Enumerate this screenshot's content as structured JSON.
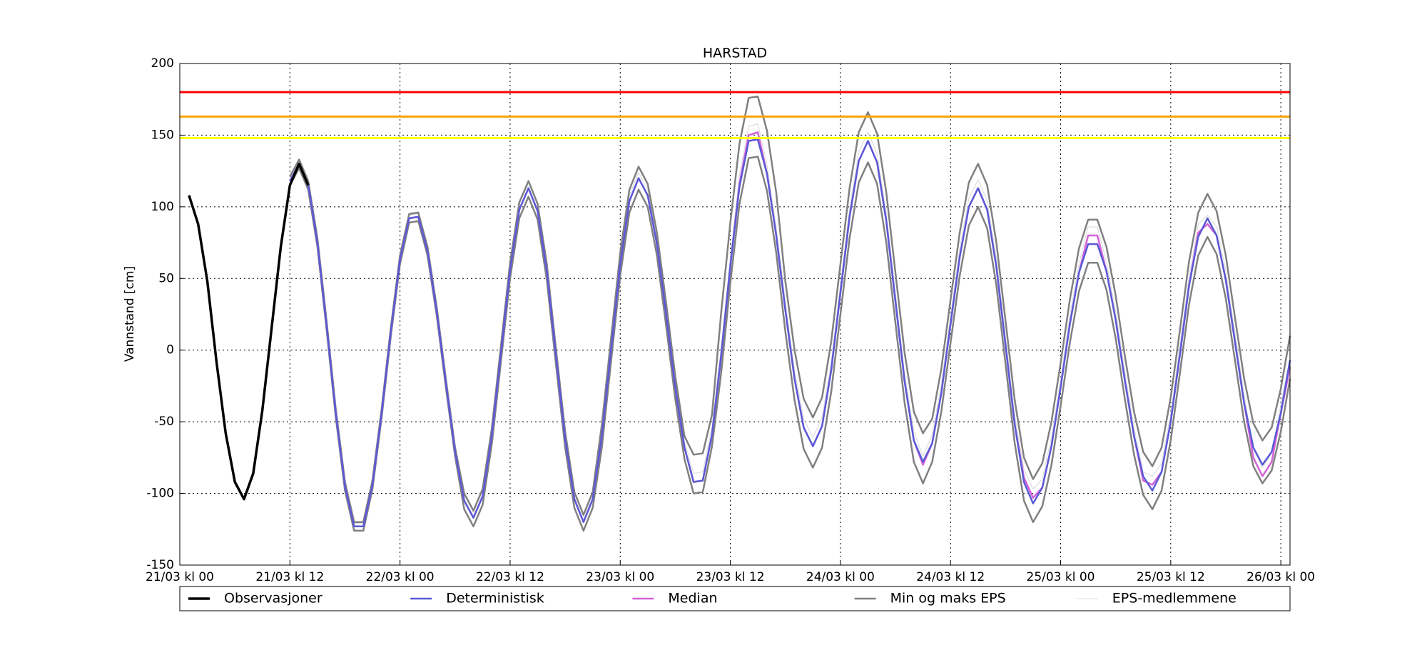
{
  "chart_data": {
    "type": "line",
    "title": "HARSTAD",
    "y_label": "Vannstand [cm]",
    "xlim": [
      0,
      121
    ],
    "ylim": [
      -150,
      200
    ],
    "grid": true,
    "legend": "bottom",
    "xticks": [
      {
        "value": 0,
        "label": "21/03 kl 00"
      },
      {
        "value": 12,
        "label": "21/03 kl 12"
      },
      {
        "value": 24,
        "label": "22/03 kl 00"
      },
      {
        "value": 36,
        "label": "22/03 kl 12"
      },
      {
        "value": 48,
        "label": "23/03 kl 00"
      },
      {
        "value": 60,
        "label": "23/03 kl 12"
      },
      {
        "value": 72,
        "label": "24/03 kl 00"
      },
      {
        "value": 84,
        "label": "24/03 kl 12"
      },
      {
        "value": 96,
        "label": "25/03 kl 00"
      },
      {
        "value": 108,
        "label": "25/03 kl 12"
      },
      {
        "value": 120,
        "label": "26/03 kl 00"
      }
    ],
    "yticks": [
      -150,
      -100,
      -50,
      0,
      50,
      100,
      150,
      200
    ],
    "thresholds": [
      {
        "value": 180,
        "color": "#ff0000"
      },
      {
        "value": 163,
        "color": "#ffa500"
      },
      {
        "value": 148,
        "color": "#ffff00"
      }
    ],
    "x": [
      12,
      13,
      14,
      15,
      16,
      17,
      18,
      19,
      20,
      21,
      22,
      23,
      24,
      25,
      26,
      27,
      28,
      29,
      30,
      31,
      32,
      33,
      34,
      35,
      36,
      37,
      38,
      39,
      40,
      41,
      42,
      43,
      44,
      45,
      46,
      47,
      48,
      49,
      50,
      51,
      52,
      53,
      54,
      55,
      56,
      57,
      58,
      59,
      60,
      61,
      62,
      63,
      64,
      65,
      66,
      67,
      68,
      69,
      70,
      71,
      72,
      73,
      74,
      75,
      76,
      77,
      78,
      79,
      80,
      81,
      82,
      83,
      84,
      85,
      86,
      87,
      88,
      89,
      90,
      91,
      92,
      93,
      94,
      95,
      96,
      97,
      98,
      99,
      100,
      101,
      102,
      103,
      104,
      105,
      106,
      107,
      108,
      109,
      110,
      111,
      112,
      113,
      114,
      115,
      116,
      117,
      118,
      119,
      120,
      121
    ],
    "series": [
      {
        "name": "Observasjoner",
        "color": "#000000",
        "width": 3.5,
        "x": [
          1,
          2,
          3,
          4,
          5,
          6,
          7,
          8,
          9,
          10,
          11,
          12,
          13,
          14
        ],
        "values": [
          108,
          88,
          48,
          -8,
          -58,
          -92,
          -104,
          -86,
          -42,
          15,
          72,
          115,
          130,
          115
        ]
      },
      {
        "name": "Deterministisk",
        "color": "#5a5ad6",
        "width": 2.5,
        "values": [
          118,
          130,
          115,
          75,
          17,
          -44,
          -95,
          -123,
          -123,
          -94,
          -44,
          13,
          63,
          92,
          93,
          69,
          27,
          -23,
          -71,
          -105,
          -117,
          -102,
          -60,
          -2,
          56,
          98,
          113,
          97,
          55,
          -4,
          -62,
          -104,
          -120,
          -104,
          -60,
          0,
          60,
          104,
          120,
          108,
          74,
          25,
          -26,
          -68,
          -92,
          -91,
          -59,
          -4,
          59,
          114,
          146,
          147,
          123,
          80,
          28,
          -20,
          -54,
          -67,
          -53,
          -14,
          40,
          93,
          132,
          146,
          131,
          90,
          34,
          -22,
          -63,
          -78,
          -65,
          -30,
          18,
          65,
          100,
          113,
          98,
          58,
          3,
          -52,
          -92,
          -107,
          -96,
          -67,
          -26,
          18,
          54,
          74,
          74,
          55,
          21,
          -21,
          -60,
          -88,
          -98,
          -85,
          -50,
          -3,
          45,
          79,
          92,
          80,
          49,
          6,
          -37,
          -68,
          -80,
          -71,
          -44,
          -7
        ]
      },
      {
        "name": "Median",
        "color": "#d462d8",
        "width": 2.5,
        "values": [
          118,
          130,
          115,
          75,
          17,
          -44,
          -95,
          -123,
          -123,
          -94,
          -44,
          13,
          63,
          92,
          93,
          69,
          27,
          -23,
          -71,
          -105,
          -117,
          -102,
          -60,
          -2,
          56,
          98,
          113,
          97,
          55,
          -4,
          -62,
          -104,
          -120,
          -104,
          -60,
          0,
          60,
          104,
          120,
          108,
          74,
          25,
          -26,
          -68,
          -92,
          -91,
          -59,
          -4,
          59,
          116,
          150,
          152,
          123,
          80,
          28,
          -20,
          -54,
          -67,
          -53,
          -14,
          40,
          93,
          132,
          146,
          131,
          90,
          34,
          -22,
          -63,
          -80,
          -65,
          -30,
          18,
          65,
          100,
          113,
          98,
          58,
          3,
          -52,
          -89,
          -103,
          -96,
          -67,
          -26,
          18,
          54,
          80,
          80,
          55,
          21,
          -21,
          -60,
          -91,
          -94,
          -85,
          -50,
          -3,
          45,
          82,
          88,
          80,
          49,
          6,
          -37,
          -75,
          -88,
          -78,
          -44,
          -12
        ]
      },
      {
        "name": "Min og maks EPS",
        "color": "#808080",
        "width": 2.5,
        "min": [
          115,
          127,
          112,
          72,
          14,
          -47,
          -98,
          -126,
          -126,
          -97,
          -47,
          10,
          60,
          89,
          90,
          66,
          24,
          -26,
          -74,
          -111,
          -123,
          -108,
          -66,
          -8,
          50,
          92,
          107,
          91,
          49,
          -10,
          -68,
          -110,
          -126,
          -110,
          -68,
          -8,
          52,
          96,
          112,
          100,
          66,
          17,
          -34,
          -76,
          -100,
          -99,
          -67,
          -16,
          47,
          102,
          134,
          135,
          111,
          68,
          13,
          -35,
          -69,
          -82,
          -68,
          -29,
          25,
          78,
          117,
          131,
          116,
          75,
          19,
          -37,
          -78,
          -93,
          -78,
          -43,
          5,
          52,
          87,
          100,
          85,
          45,
          -10,
          -65,
          -105,
          -120,
          -109,
          -80,
          -39,
          5,
          41,
          61,
          61,
          42,
          8,
          -34,
          -73,
          -101,
          -111,
          -98,
          -63,
          -16,
          32,
          66,
          79,
          67,
          36,
          -7,
          -50,
          -81,
          -93,
          -84,
          -57,
          -20
        ],
        "max": [
          121,
          133,
          118,
          78,
          20,
          -41,
          -92,
          -120,
          -120,
          -91,
          -41,
          16,
          66,
          95,
          96,
          72,
          30,
          -20,
          -68,
          -100,
          -112,
          -97,
          -55,
          3,
          61,
          103,
          118,
          102,
          60,
          1,
          -57,
          -99,
          -115,
          -99,
          -52,
          8,
          68,
          112,
          128,
          116,
          82,
          33,
          -18,
          -60,
          -73,
          -72,
          -45,
          26,
          89,
          144,
          176,
          177,
          153,
          110,
          48,
          0,
          -34,
          -47,
          -33,
          6,
          60,
          113,
          152,
          166,
          151,
          110,
          54,
          -2,
          -43,
          -58,
          -48,
          -13,
          35,
          82,
          117,
          130,
          115,
          75,
          20,
          -35,
          -75,
          -90,
          -79,
          -50,
          -9,
          35,
          71,
          91,
          91,
          72,
          38,
          -4,
          -43,
          -71,
          -81,
          -68,
          -33,
          14,
          62,
          96,
          109,
          97,
          66,
          23,
          -20,
          -51,
          -63,
          -54,
          -27,
          10
        ]
      },
      {
        "name": "EPS-medlemmene",
        "color": "#d8d8d8",
        "width": 1,
        "values": [
          120,
          132,
          117,
          77,
          19,
          -42,
          -93,
          -121,
          -121,
          -92,
          -42,
          15,
          65,
          94,
          95,
          71,
          29,
          -21,
          -69,
          -101,
          -113,
          -98,
          -56,
          2,
          60,
          102,
          117,
          101,
          59,
          0,
          -58,
          -100,
          -116,
          -100,
          -56,
          4,
          64,
          108,
          124,
          112,
          78,
          29,
          -22,
          -64,
          -86,
          -85,
          -53,
          2,
          65,
          122,
          156,
          158,
          129,
          86,
          34,
          -14,
          -48,
          -61,
          -47,
          -8,
          46,
          99,
          138,
          152,
          137,
          96,
          40,
          -16,
          -57,
          -74,
          -59,
          -24,
          24,
          71,
          106,
          119,
          104,
          64,
          9,
          -46,
          -83,
          -97,
          -90,
          -61,
          -20,
          24,
          60,
          86,
          86,
          61,
          27,
          -15,
          -54,
          -85,
          -88,
          -79,
          -44,
          3,
          51,
          88,
          94,
          86,
          55,
          12,
          -31,
          -69,
          -82,
          -72,
          -38,
          -6
        ]
      }
    ]
  }
}
